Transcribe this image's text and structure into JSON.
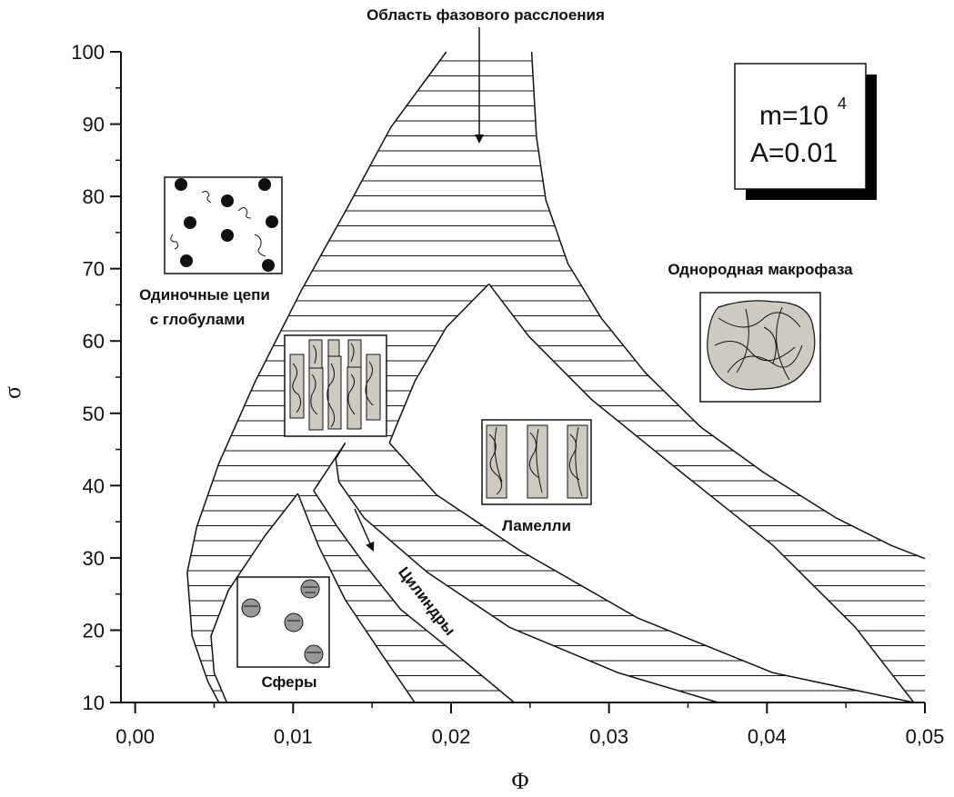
{
  "chart_data": {
    "type": "phase_diagram",
    "xlabel": "Φ",
    "ylabel": "σ",
    "xlim": [
      -0.0009,
      0.05
    ],
    "ylim": [
      10,
      100
    ],
    "xticks": [
      {
        "value": 0,
        "label": "0,00"
      },
      {
        "value": 0.01,
        "label": "0,01"
      },
      {
        "value": 0.02,
        "label": "0,02"
      },
      {
        "value": 0.03,
        "label": "0,03"
      },
      {
        "value": 0.04,
        "label": "0,04"
      },
      {
        "value": 0.05,
        "label": "0,05"
      }
    ],
    "yticks": [
      10,
      20,
      30,
      40,
      50,
      60,
      70,
      80,
      90,
      100
    ],
    "boundaries": [
      {
        "x": [
          0.0197,
          0.0162,
          0.0134,
          0.0105,
          0.0076,
          0.0053,
          0.0039,
          0.0033,
          0.0036,
          0.0046,
          0.0053
        ],
        "y": [
          100,
          89.6,
          78.3,
          66.9,
          54.4,
          43.1,
          34.3,
          28,
          19.2,
          12.9,
          10
        ]
      },
      {
        "x": [
          0.0251,
          0.0254,
          0.026,
          0.0274,
          0.0295,
          0.0323,
          0.0358,
          0.0398,
          0.0444,
          0.0479,
          0.05
        ],
        "y": [
          100,
          88.3,
          79.5,
          70.7,
          63.2,
          55.6,
          48.1,
          41.8,
          35.5,
          31.7,
          29.9
        ]
      },
      {
        "x": [
          0.0224,
          0.0197,
          0.0177,
          0.0165,
          0.0161
        ],
        "y": [
          67.9,
          61.9,
          54.4,
          48.1,
          45.9
        ]
      },
      {
        "x": [
          0.0224,
          0.0249,
          0.0289,
          0.0346,
          0.0404,
          0.0456,
          0.0493
        ],
        "y": [
          67.9,
          60.7,
          51.9,
          41.8,
          31.7,
          20.4,
          10
        ]
      },
      {
        "x": [
          0.0161,
          0.0191,
          0.0243,
          0.0318,
          0.0404,
          0.0493
        ],
        "y": [
          45.9,
          38.7,
          31.1,
          21.7,
          14.1,
          10
        ]
      },
      {
        "x": [
          0.0133,
          0.0127,
          0.0129,
          0.0145,
          0.0185,
          0.0237,
          0.0306,
          0.0369
        ],
        "y": [
          45.9,
          43.7,
          40.5,
          35.5,
          28,
          20.4,
          14.1,
          10
        ]
      },
      {
        "x": [
          0.0133,
          0.0113,
          0.0128,
          0.0145,
          0.0168,
          0.0203,
          0.024
        ],
        "y": [
          45.9,
          39.3,
          34.3,
          29.2,
          22.9,
          16.7,
          10
        ]
      },
      {
        "x": [
          0.0103,
          0.0082,
          0.0059,
          0.0048,
          0.005,
          0.0058
        ],
        "y": [
          38.9,
          33,
          25.5,
          19.2,
          14.1,
          10
        ]
      },
      {
        "x": [
          0.0103,
          0.0116,
          0.0133,
          0.0156,
          0.0177
        ],
        "y": [
          38.9,
          31.7,
          24.2,
          16.7,
          10
        ]
      }
    ],
    "annotations": [
      "Область фазового расслоения",
      "Одиночные цепи",
      "с глобулами",
      "Однородная макрофаза",
      "Ламелли",
      "Цилиндры",
      "Сферы"
    ],
    "parameters": [
      {
        "text": "m=10",
        "superscript": "4"
      },
      {
        "text": "A=0.01"
      }
    ]
  }
}
